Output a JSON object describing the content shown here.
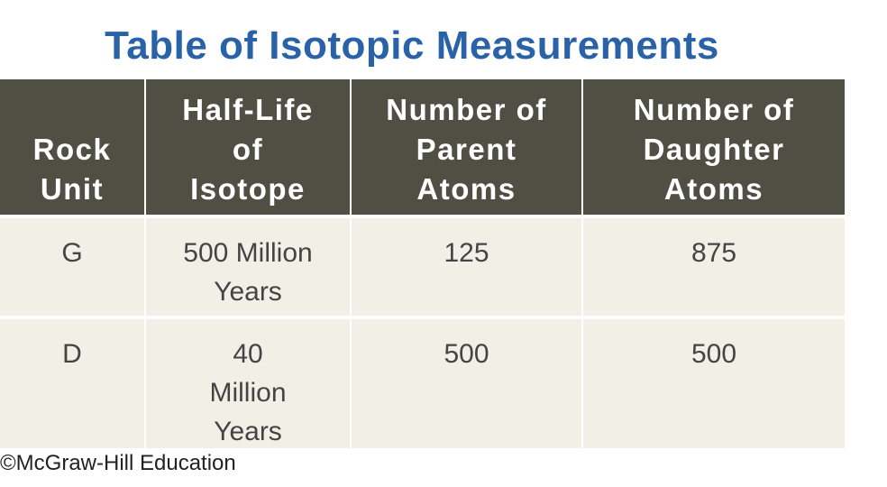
{
  "title": "Table of Isotopic Measurements",
  "table": {
    "header": [
      [
        "Rock",
        "Unit"
      ],
      [
        "Half-Life",
        "of",
        "Isotope"
      ],
      [
        "Number of",
        "Parent",
        "Atoms"
      ],
      [
        "Number of",
        "Daughter",
        "Atoms"
      ]
    ],
    "rows": [
      [
        [
          "G"
        ],
        [
          "500 Million",
          "Years"
        ],
        [
          "125"
        ],
        [
          "875"
        ]
      ],
      [
        [
          "D"
        ],
        [
          "40",
          "Million",
          "Years"
        ],
        [
          "500"
        ],
        [
          "500"
        ]
      ]
    ]
  },
  "credit": "©McGraw-Hill Education"
}
